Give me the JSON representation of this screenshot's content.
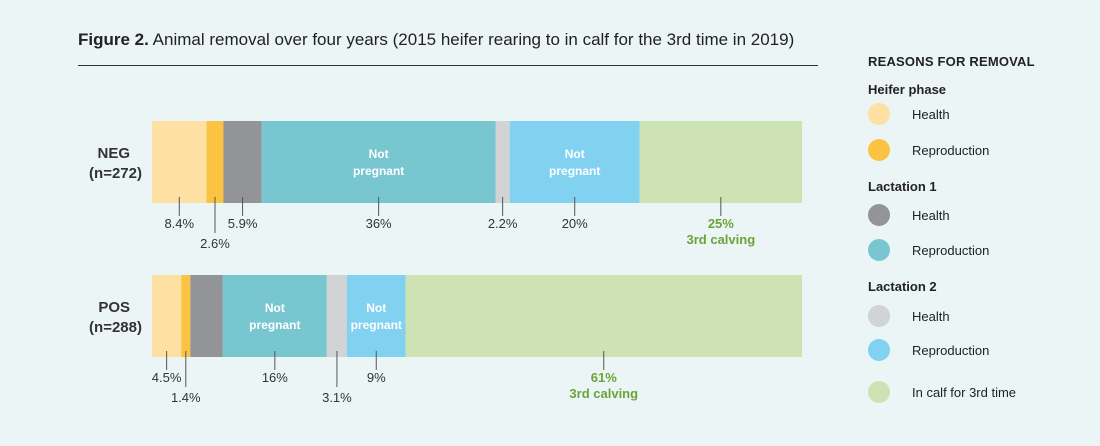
{
  "title": {
    "bold": "Figure 2.",
    "text": "Animal removal over four years (2015 heifer rearing to in calf for the 3rd time in 2019)"
  },
  "legend": {
    "title": "REASONS FOR REMOVAL",
    "groups": [
      {
        "title": "Heifer phase",
        "items": [
          {
            "label": "Health",
            "color": "#fde0a2"
          },
          {
            "label": "Reproduction",
            "color": "#fcc343"
          }
        ]
      },
      {
        "title": "Lactation 1",
        "items": [
          {
            "label": "Health",
            "color": "#929497"
          },
          {
            "label": "Reproduction",
            "color": "#78c6cf"
          }
        ]
      },
      {
        "title": "Lactation 2",
        "items": [
          {
            "label": "Health",
            "color": "#d1d3d4"
          },
          {
            "label": "Reproduction",
            "color": "#81d2f0"
          }
        ]
      },
      {
        "title": "",
        "items": [
          {
            "label": "In calf for 3rd time",
            "color": "#cde3b3"
          }
        ]
      }
    ]
  },
  "chart_data": {
    "type": "bar",
    "orientation": "horizontal",
    "stacked": true,
    "categories": [
      {
        "name": "NEG",
        "n": "(n=272)"
      },
      {
        "name": "POS",
        "n": "(n=288)"
      }
    ],
    "series": [
      {
        "name": "Heifer phase – Health",
        "color": "#fde0a2",
        "values": [
          8.4,
          4.5
        ],
        "labels": [
          "8.4%",
          "4.5%"
        ],
        "inner": [
          "",
          ""
        ]
      },
      {
        "name": "Heifer phase – Reproduction",
        "color": "#fcc343",
        "values": [
          2.6,
          1.4
        ],
        "labels": [
          "2.6%",
          "1.4%"
        ],
        "inner": [
          "",
          ""
        ]
      },
      {
        "name": "Lactation 1 – Health",
        "color": "#929497",
        "values": [
          5.9,
          5.0
        ],
        "labels": [
          "5.9%",
          ""
        ],
        "inner": [
          "",
          ""
        ]
      },
      {
        "name": "Lactation 1 – Reproduction",
        "color": "#78c6cf",
        "values": [
          36,
          16
        ],
        "labels": [
          "36%",
          "16%"
        ],
        "inner": [
          "Not pregnant",
          "Not pregnant"
        ]
      },
      {
        "name": "Lactation 2 – Health",
        "color": "#d1d3d4",
        "values": [
          2.2,
          3.1
        ],
        "labels": [
          "2.2%",
          "3.1%"
        ],
        "inner": [
          "",
          ""
        ]
      },
      {
        "name": "Lactation 2 – Reproduction",
        "color": "#81d2f0",
        "values": [
          20,
          9
        ],
        "labels": [
          "20%",
          "9%"
        ],
        "inner": [
          "Not pregnant",
          "Not pregnant"
        ]
      },
      {
        "name": "In calf for 3rd time",
        "color": "#cde3b3",
        "values": [
          25,
          61
        ],
        "labels": [
          "25%",
          "61%"
        ],
        "sublabels": [
          "3rd calving",
          "3rd calving"
        ],
        "inner": [
          "",
          ""
        ]
      }
    ],
    "xlim": [
      0,
      100
    ],
    "label_color_last": "#6aa338"
  }
}
